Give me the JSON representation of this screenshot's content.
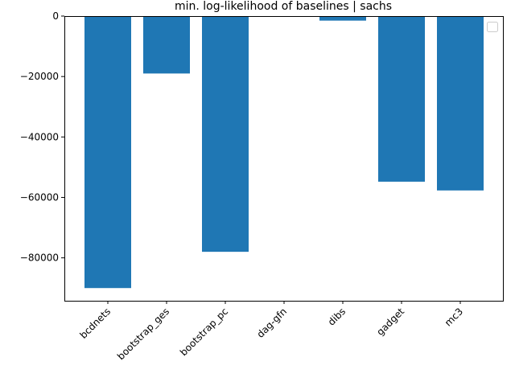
{
  "chart_data": {
    "type": "bar",
    "title": "min. log-likelihood of baselines | sachs",
    "xlabel": "",
    "ylabel": "",
    "categories": [
      "bcdnets",
      "bootstrap_ges",
      "bootstrap_pc",
      "dag-gfn",
      "dibs",
      "gadget",
      "mc3"
    ],
    "values": [
      -90000,
      -19000,
      -78000,
      0,
      -1500,
      -54800,
      -57700
    ],
    "ylim": [
      -94200,
      0
    ],
    "yticks": [
      0,
      -20000,
      -40000,
      -60000,
      -80000
    ],
    "ytick_labels": [
      "0",
      "−20000",
      "−40000",
      "−60000",
      "−80000"
    ],
    "bar_color": "#1f77b4",
    "grid": false,
    "legend": {
      "placement": "top-right",
      "entries": []
    }
  }
}
